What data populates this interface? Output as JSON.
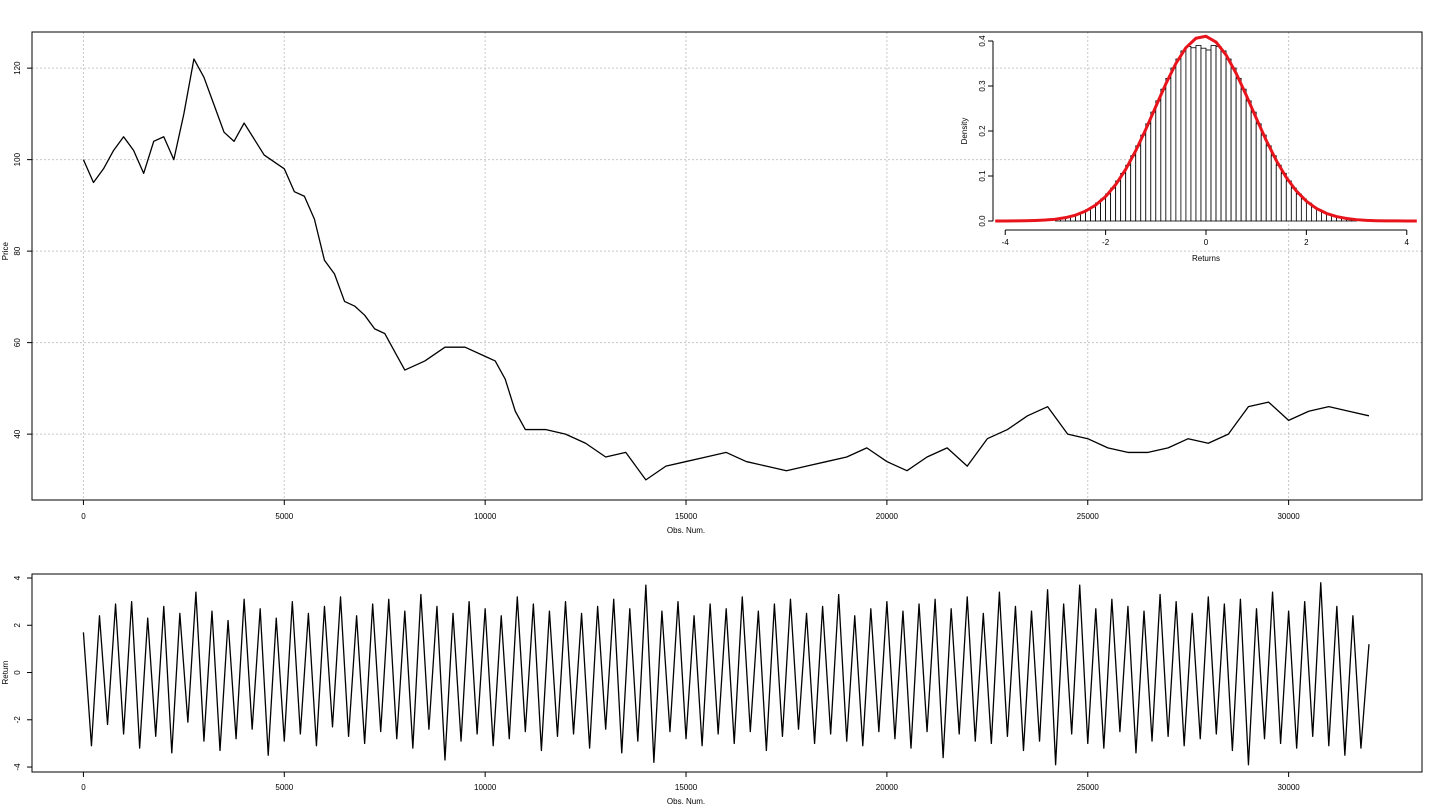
{
  "chart_data": [
    {
      "type": "line",
      "xlabel": "Obs. Num.",
      "ylabel": "Price",
      "color": "#000000",
      "grid": true,
      "xlim": [
        -1280,
        33320
      ],
      "ylim": [
        25.6,
        127.9
      ],
      "xticks": [
        0,
        5000,
        10000,
        15000,
        20000,
        25000,
        30000
      ],
      "yticks": [
        40,
        60,
        80,
        100,
        120
      ],
      "x": [
        0,
        250,
        500,
        750,
        1000,
        1250,
        1500,
        1750,
        2000,
        2250,
        2500,
        2750,
        3000,
        3250,
        3500,
        3750,
        4000,
        4500,
        5000,
        5250,
        5500,
        5750,
        6000,
        6250,
        6500,
        6750,
        7000,
        7250,
        7500,
        7750,
        8000,
        8500,
        9000,
        9500,
        10000,
        10250,
        10500,
        10750,
        11000,
        11500,
        12000,
        12500,
        13000,
        13500,
        14000,
        14500,
        15000,
        15500,
        16000,
        16500,
        17000,
        17500,
        18000,
        18500,
        19000,
        19500,
        20000,
        20500,
        21000,
        21500,
        22000,
        22500,
        23000,
        23500,
        24000,
        24250,
        24500,
        25000,
        25500,
        26000,
        26500,
        27000,
        27500,
        28000,
        28500,
        29000,
        29500,
        30000,
        30500,
        31000,
        31500,
        32000
      ],
      "values": [
        100,
        95,
        98,
        102,
        105,
        102,
        97,
        104,
        105,
        100,
        110,
        122,
        118,
        112,
        106,
        104,
        108,
        101,
        98,
        93,
        92,
        87,
        78,
        75,
        69,
        68,
        66,
        63,
        62,
        58,
        54,
        56,
        59,
        59,
        57,
        56,
        52,
        45,
        41,
        41,
        40,
        38,
        35,
        36,
        30,
        33,
        34,
        35,
        36,
        34,
        33,
        32,
        33,
        34,
        35,
        37,
        34,
        32,
        35,
        37,
        33,
        39,
        41,
        44,
        46,
        43,
        40,
        39,
        37,
        36,
        36,
        37,
        39,
        38,
        40,
        46,
        47,
        43,
        45,
        46,
        45,
        44
      ]
    },
    {
      "type": "histogram",
      "xlabel": "Returns",
      "ylabel": "Density",
      "color": "#000000",
      "xlim": [
        -4.2,
        4.2
      ],
      "ylim": [
        -0.016,
        0.425
      ],
      "xticks": [
        -4,
        -2,
        0,
        2,
        4
      ],
      "yticks": [
        {
          "value": 0,
          "label": "0.0"
        },
        0.1,
        0.2,
        0.3,
        0.4
      ],
      "bins": [
        -3.0,
        -2.9,
        -2.8,
        -2.7,
        -2.6,
        -2.5,
        -2.4,
        -2.3,
        -2.2,
        -2.1,
        -2.0,
        -1.9,
        -1.8,
        -1.7,
        -1.6,
        -1.5,
        -1.4,
        -1.3,
        -1.2,
        -1.1,
        -1.0,
        -0.9,
        -0.8,
        -0.7,
        -0.6,
        -0.5,
        -0.4,
        -0.3,
        -0.2,
        -0.1,
        0.0,
        0.1,
        0.2,
        0.3,
        0.4,
        0.5,
        0.6,
        0.7,
        0.8,
        0.9,
        1.0,
        1.1,
        1.2,
        1.3,
        1.4,
        1.5,
        1.6,
        1.7,
        1.8,
        1.9,
        2.0,
        2.1,
        2.2,
        2.3,
        2.4,
        2.5,
        2.6,
        2.7,
        2.8,
        2.9,
        3.0
      ],
      "values": [
        0.005,
        0.006,
        0.009,
        0.011,
        0.015,
        0.019,
        0.025,
        0.031,
        0.04,
        0.049,
        0.06,
        0.073,
        0.089,
        0.106,
        0.124,
        0.145,
        0.167,
        0.191,
        0.216,
        0.242,
        0.267,
        0.293,
        0.317,
        0.34,
        0.36,
        0.378,
        0.388,
        0.385,
        0.39,
        0.384,
        0.38,
        0.39,
        0.388,
        0.378,
        0.36,
        0.34,
        0.317,
        0.293,
        0.267,
        0.242,
        0.216,
        0.191,
        0.167,
        0.145,
        0.124,
        0.106,
        0.089,
        0.073,
        0.06,
        0.049,
        0.04,
        0.031,
        0.025,
        0.019,
        0.015,
        0.011,
        0.009,
        0.006,
        0.005,
        0.003
      ],
      "density_curve": {
        "color": "#e8141c",
        "x": [
          -4.2,
          -4.0,
          -3.8,
          -3.6,
          -3.4,
          -3.2,
          -3.0,
          -2.8,
          -2.6,
          -2.4,
          -2.2,
          -2.0,
          -1.8,
          -1.6,
          -1.4,
          -1.2,
          -1.0,
          -0.8,
          -0.6,
          -0.4,
          -0.2,
          0.0,
          0.2,
          0.4,
          0.6,
          0.8,
          1.0,
          1.2,
          1.4,
          1.6,
          1.8,
          2.0,
          2.2,
          2.4,
          2.6,
          2.8,
          3.0,
          3.2,
          3.4,
          3.6,
          3.8,
          4.0,
          4.2
        ],
        "values": [
          0,
          0.0001,
          0.0002,
          0.0005,
          0.0011,
          0.0021,
          0.004,
          0.0074,
          0.013,
          0.0219,
          0.0353,
          0.0545,
          0.0808,
          0.1147,
          0.1561,
          0.2035,
          0.2544,
          0.3048,
          0.35,
          0.3851,
          0.4061,
          0.4105,
          0.3976,
          0.3691,
          0.3283,
          0.2799,
          0.2288,
          0.1792,
          0.1345,
          0.0967,
          0.0667,
          0.0441,
          0.0279,
          0.0169,
          0.0099,
          0.0055,
          0.0029,
          0.0015,
          0.0007,
          0.0003,
          0.0002,
          0.0001,
          0
        ]
      }
    },
    {
      "type": "line",
      "xlabel": "Obs. Num.",
      "ylabel": "Return",
      "color": "#000000",
      "xlim": [
        -1280,
        33320
      ],
      "ylim": [
        -4.21,
        4.17
      ],
      "xticks": [
        0,
        5000,
        10000,
        15000,
        20000,
        25000,
        30000
      ],
      "yticks": [
        -4,
        -2,
        0,
        2,
        4
      ],
      "x": [
        0,
        200,
        400,
        600,
        800,
        1000,
        1200,
        1400,
        1600,
        1800,
        2000,
        2200,
        2400,
        2600,
        2800,
        3000,
        3200,
        3400,
        3600,
        3800,
        4000,
        4200,
        4400,
        4600,
        4800,
        5000,
        5200,
        5400,
        5600,
        5800,
        6000,
        6200,
        6400,
        6600,
        6800,
        7000,
        7200,
        7400,
        7600,
        7800,
        8000,
        8200,
        8400,
        8600,
        8800,
        9000,
        9200,
        9400,
        9600,
        9800,
        10000,
        10200,
        10400,
        10600,
        10800,
        11000,
        11200,
        11400,
        11600,
        11800,
        12000,
        12200,
        12400,
        12600,
        12800,
        13000,
        13200,
        13400,
        13600,
        13800,
        14000,
        14200,
        14400,
        14600,
        14800,
        15000,
        15200,
        15400,
        15600,
        15800,
        16000,
        16200,
        16400,
        16600,
        16800,
        17000,
        17200,
        17400,
        17600,
        17800,
        18000,
        18200,
        18400,
        18600,
        18800,
        19000,
        19200,
        19400,
        19600,
        19800,
        20000,
        20200,
        20400,
        20600,
        20800,
        21000,
        21200,
        21400,
        21600,
        21800,
        22000,
        22200,
        22400,
        22600,
        22800,
        23000,
        23200,
        23400,
        23600,
        23800,
        24000,
        24200,
        24400,
        24600,
        24800,
        25000,
        25200,
        25400,
        25600,
        25800,
        26000,
        26200,
        26400,
        26600,
        26800,
        27000,
        27200,
        27400,
        27600,
        27800,
        28000,
        28200,
        28400,
        28600,
        28800,
        29000,
        29200,
        29400,
        29600,
        29800,
        30000,
        30200,
        30400,
        30600,
        30800,
        31000,
        31200,
        31400,
        31600,
        31800,
        32000
      ],
      "values": [
        1.7,
        -3.1,
        2.4,
        -2.2,
        2.9,
        -2.6,
        3.0,
        -3.2,
        2.3,
        -2.7,
        2.8,
        -3.4,
        2.5,
        -2.1,
        3.4,
        -2.9,
        2.6,
        -3.3,
        2.2,
        -2.8,
        3.1,
        -2.4,
        2.7,
        -3.5,
        2.3,
        -2.9,
        3.0,
        -2.6,
        2.5,
        -3.1,
        2.8,
        -2.3,
        3.2,
        -2.7,
        2.4,
        -3.0,
        2.9,
        -2.5,
        3.1,
        -2.8,
        2.6,
        -3.2,
        3.3,
        -2.4,
        2.8,
        -3.7,
        2.5,
        -2.9,
        3.0,
        -2.6,
        2.7,
        -3.1,
        2.4,
        -2.8,
        3.2,
        -2.5,
        2.9,
        -3.3,
        2.6,
        -2.7,
        3.0,
        -2.6,
        2.5,
        -3.2,
        2.8,
        -2.4,
        3.1,
        -3.4,
        2.7,
        -2.9,
        3.7,
        -3.8,
        2.6,
        -2.5,
        3.0,
        -2.8,
        2.4,
        -3.1,
        2.9,
        -2.6,
        2.7,
        -3.0,
        3.2,
        -2.5,
        2.6,
        -3.3,
        2.9,
        -2.7,
        3.1,
        -2.4,
        2.5,
        -3.0,
        2.8,
        -2.6,
        3.3,
        -2.9,
        2.4,
        -3.1,
        2.7,
        -2.5,
        3.0,
        -2.8,
        2.6,
        -3.2,
        2.9,
        -2.5,
        3.1,
        -3.6,
        2.7,
        -2.6,
        3.2,
        -2.9,
        2.5,
        -3.0,
        3.4,
        -2.7,
        2.8,
        -3.3,
        2.6,
        -2.9,
        3.5,
        -3.9,
        2.9,
        -2.6,
        3.7,
        -3.0,
        2.7,
        -3.2,
        3.1,
        -2.5,
        2.8,
        -3.4,
        2.6,
        -2.9,
        3.3,
        -2.7,
        3.0,
        -3.1,
        2.5,
        -2.8,
        3.2,
        -2.6,
        2.9,
        -3.3,
        3.1,
        -3.9,
        2.7,
        -2.8,
        3.4,
        -3.0,
        2.6,
        -3.2,
        3.0,
        -2.7,
        3.8,
        -3.1,
        2.8,
        -3.5,
        2.4,
        -3.2,
        1.2
      ]
    }
  ]
}
